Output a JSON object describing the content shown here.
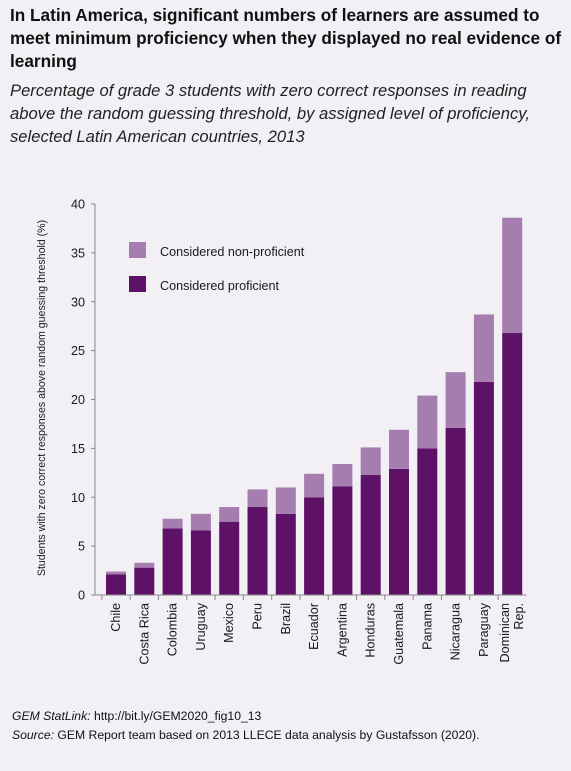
{
  "title": "In Latin America, significant numbers of learners are assumed to meet minimum proficiency when they displayed no real evidence of learning",
  "subtitle": "Percentage of grade 3 students with zero correct responses in reading above the random guessing threshold, by assigned level of proficiency, selected Latin American countries, 2013",
  "footer": {
    "statlink_label": "GEM StatLink:",
    "statlink_url": "http://bit.ly/GEM2020_fig10_13",
    "source_label": "Source:",
    "source_text": "GEM Report team based on 2013 LLECE data analysis by Gustafsson (2020)."
  },
  "colors": {
    "proficient": "#5e1267",
    "non_proficient": "#a57daf",
    "background": "#f2eff5"
  },
  "chart_data": {
    "type": "bar",
    "stacked": true,
    "categories": [
      "Chile",
      "Costa Rica",
      "Colombia",
      "Uruguay",
      "Mexico",
      "Peru",
      "Brazil",
      "Ecuador",
      "Argentina",
      "Honduras",
      "Guatemala",
      "Panama",
      "Nicaragua",
      "Paraguay",
      "Dominican Rep."
    ],
    "series": [
      {
        "name": "Considered proficient",
        "values": [
          2.1,
          2.8,
          6.8,
          6.6,
          7.5,
          9.0,
          8.3,
          10.0,
          11.1,
          12.3,
          12.9,
          15.0,
          17.1,
          21.8,
          26.8
        ]
      },
      {
        "name": "Considered non-proficient",
        "values": [
          0.3,
          0.5,
          1.0,
          1.7,
          1.5,
          1.8,
          2.7,
          2.4,
          2.3,
          2.8,
          4.0,
          5.4,
          5.7,
          6.9,
          11.8
        ]
      }
    ],
    "legend_order": [
      "Considered non-proficient",
      "Considered proficient"
    ],
    "ylabel": "Students with zero correct responses above random guessing threshold (%)",
    "xlabel": "",
    "ylim": [
      0,
      40
    ],
    "yticks": [
      0,
      5,
      10,
      15,
      20,
      25,
      30,
      35,
      40
    ],
    "grid": false,
    "legend_position": "top-left"
  }
}
